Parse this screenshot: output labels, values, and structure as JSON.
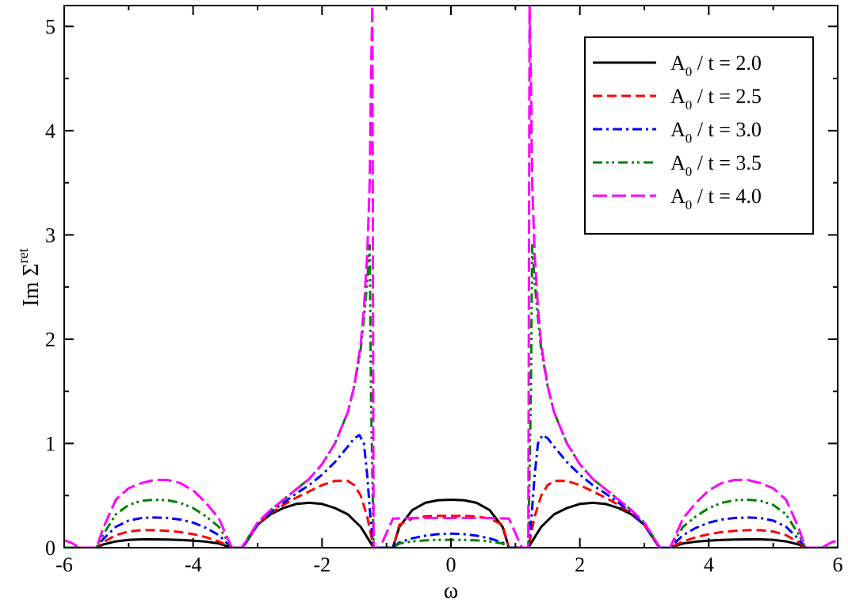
{
  "chart_data": {
    "type": "line",
    "xlabel": "ω",
    "ylabel_main": "Im Σ",
    "ylabel_sup": "ret",
    "xlim": [
      -6,
      6
    ],
    "ylim": [
      0,
      5.2
    ],
    "xticks": [
      -6,
      -4,
      -2,
      0,
      2,
      4,
      6
    ],
    "xtick_labels": [
      "-6",
      "-4",
      "-2",
      "0",
      "2",
      "4",
      "6"
    ],
    "yticks": [
      0,
      1,
      2,
      3,
      4,
      5
    ],
    "ytick_labels": [
      "0",
      "1",
      "2",
      "3",
      "4",
      "5"
    ],
    "legend_position": "top-right",
    "series": [
      {
        "label_base": "A",
        "label_sub": "0",
        "label_rest": " / t = 2.0",
        "color": "#000000",
        "dash": "solid",
        "x": [
          -6.0,
          -5.5,
          -5.4,
          -5.2,
          -5.0,
          -4.8,
          -4.6,
          -4.4,
          -4.2,
          -4.0,
          -3.8,
          -3.6,
          -3.5,
          -3.4,
          -3.25,
          -3.2,
          -3.0,
          -2.8,
          -2.6,
          -2.4,
          -2.2,
          -2.0,
          -1.8,
          -1.6,
          -1.4,
          -1.3,
          -1.2,
          -1.1,
          -0.9,
          -0.8,
          -0.6,
          -0.4,
          -0.2,
          0.0,
          0.2,
          0.4,
          0.6,
          0.8,
          0.9,
          1.1,
          1.2,
          1.3,
          1.4,
          1.6,
          1.8,
          2.0,
          2.2,
          2.4,
          2.6,
          2.8,
          3.0,
          3.2,
          3.25,
          3.4,
          3.5,
          3.6,
          3.8,
          4.0,
          4.2,
          4.4,
          4.6,
          4.8,
          5.0,
          5.2,
          5.4,
          5.5,
          6.0
        ],
        "y": [
          0.0,
          0.0,
          0.03,
          0.06,
          0.075,
          0.08,
          0.08,
          0.078,
          0.074,
          0.068,
          0.058,
          0.04,
          0.02,
          0.0,
          0.0,
          0.03,
          0.22,
          0.32,
          0.38,
          0.42,
          0.43,
          0.42,
          0.38,
          0.32,
          0.2,
          0.1,
          0.0,
          0.0,
          0.0,
          0.2,
          0.36,
          0.43,
          0.455,
          0.46,
          0.455,
          0.43,
          0.36,
          0.2,
          0.0,
          0.0,
          0.0,
          0.1,
          0.2,
          0.32,
          0.38,
          0.42,
          0.43,
          0.42,
          0.38,
          0.32,
          0.22,
          0.03,
          0.0,
          0.0,
          0.02,
          0.04,
          0.058,
          0.068,
          0.074,
          0.078,
          0.08,
          0.08,
          0.075,
          0.06,
          0.03,
          0.0,
          0.0
        ]
      },
      {
        "label_base": "A",
        "label_sub": "0",
        "label_rest": " / t = 2.5",
        "color": "#ff0000",
        "dash": "dash",
        "x": [
          -6.0,
          -5.5,
          -5.4,
          -5.2,
          -5.0,
          -4.8,
          -4.6,
          -4.4,
          -4.2,
          -4.0,
          -3.8,
          -3.6,
          -3.5,
          -3.4,
          -3.25,
          -3.2,
          -3.0,
          -2.8,
          -2.6,
          -2.4,
          -2.2,
          -2.0,
          -1.8,
          -1.6,
          -1.5,
          -1.4,
          -1.3,
          -1.2,
          -1.1,
          -0.9,
          -0.8,
          -0.6,
          -0.4,
          -0.2,
          0.0,
          0.2,
          0.4,
          0.6,
          0.8,
          0.9,
          1.1,
          1.2,
          1.3,
          1.4,
          1.5,
          1.6,
          1.8,
          2.0,
          2.2,
          2.4,
          2.6,
          2.8,
          3.0,
          3.2,
          3.25,
          3.4,
          3.5,
          3.6,
          3.8,
          4.0,
          4.2,
          4.4,
          4.6,
          4.8,
          5.0,
          5.2,
          5.4,
          5.5,
          6.0
        ],
        "y": [
          0.0,
          0.0,
          0.05,
          0.12,
          0.155,
          0.168,
          0.168,
          0.162,
          0.15,
          0.13,
          0.1,
          0.06,
          0.03,
          0.0,
          0.0,
          0.03,
          0.22,
          0.33,
          0.41,
          0.48,
          0.54,
          0.6,
          0.64,
          0.64,
          0.6,
          0.5,
          0.3,
          0.0,
          0.0,
          0.0,
          0.22,
          0.28,
          0.3,
          0.305,
          0.305,
          0.305,
          0.3,
          0.28,
          0.22,
          0.0,
          0.0,
          0.0,
          0.3,
          0.5,
          0.6,
          0.64,
          0.64,
          0.6,
          0.54,
          0.48,
          0.41,
          0.33,
          0.22,
          0.03,
          0.0,
          0.0,
          0.03,
          0.06,
          0.1,
          0.13,
          0.15,
          0.162,
          0.168,
          0.168,
          0.155,
          0.12,
          0.05,
          0.0,
          0.0
        ]
      },
      {
        "label_base": "A",
        "label_sub": "0",
        "label_rest": " / t = 3.0",
        "color": "#0000ff",
        "dash": "dashdot",
        "x": [
          -6.0,
          -5.5,
          -5.4,
          -5.2,
          -5.0,
          -4.8,
          -4.6,
          -4.4,
          -4.2,
          -4.0,
          -3.8,
          -3.6,
          -3.5,
          -3.4,
          -3.25,
          -3.2,
          -3.0,
          -2.8,
          -2.6,
          -2.4,
          -2.2,
          -2.0,
          -1.8,
          -1.6,
          -1.5,
          -1.42,
          -1.35,
          -1.3,
          -1.25,
          -1.2,
          -1.1,
          -0.9,
          -0.8,
          -0.6,
          -0.4,
          -0.2,
          0.0,
          0.2,
          0.4,
          0.6,
          0.8,
          0.9,
          1.1,
          1.2,
          1.25,
          1.3,
          1.35,
          1.42,
          1.5,
          1.6,
          1.8,
          2.0,
          2.2,
          2.4,
          2.6,
          2.8,
          3.0,
          3.2,
          3.25,
          3.4,
          3.5,
          3.6,
          3.8,
          4.0,
          4.2,
          4.4,
          4.6,
          4.8,
          5.0,
          5.2,
          5.4,
          5.5,
          6.0
        ],
        "y": [
          0.0,
          0.0,
          0.08,
          0.2,
          0.26,
          0.285,
          0.29,
          0.285,
          0.27,
          0.24,
          0.19,
          0.12,
          0.06,
          0.0,
          0.0,
          0.03,
          0.22,
          0.34,
          0.43,
          0.52,
          0.6,
          0.7,
          0.82,
          0.97,
          1.05,
          1.08,
          1.0,
          0.7,
          0.3,
          0.0,
          0.0,
          0.0,
          0.05,
          0.09,
          0.115,
          0.13,
          0.135,
          0.13,
          0.115,
          0.09,
          0.05,
          0.0,
          0.0,
          0.0,
          0.3,
          0.7,
          1.0,
          1.08,
          1.05,
          0.97,
          0.82,
          0.7,
          0.6,
          0.52,
          0.43,
          0.34,
          0.22,
          0.03,
          0.0,
          0.0,
          0.06,
          0.12,
          0.19,
          0.24,
          0.27,
          0.285,
          0.29,
          0.285,
          0.26,
          0.2,
          0.08,
          0.0,
          0.0
        ]
      },
      {
        "label_base": "A",
        "label_sub": "0",
        "label_rest": " / t = 3.5",
        "color": "#008000",
        "dash": "dashdotdot",
        "x": [
          -6.0,
          -5.5,
          -5.4,
          -5.2,
          -5.0,
          -4.8,
          -4.6,
          -4.4,
          -4.2,
          -4.0,
          -3.8,
          -3.6,
          -3.5,
          -3.4,
          -3.25,
          -3.2,
          -3.0,
          -2.8,
          -2.6,
          -2.4,
          -2.2,
          -2.0,
          -1.8,
          -1.6,
          -1.5,
          -1.4,
          -1.35,
          -1.3,
          -1.26,
          -1.24,
          -1.2,
          -1.1,
          -0.9,
          -0.8,
          -0.6,
          -0.4,
          -0.2,
          0.0,
          0.2,
          0.4,
          0.6,
          0.8,
          0.9,
          1.1,
          1.2,
          1.24,
          1.26,
          1.3,
          1.35,
          1.4,
          1.5,
          1.6,
          1.8,
          2.0,
          2.2,
          2.4,
          2.6,
          2.8,
          3.0,
          3.2,
          3.25,
          3.4,
          3.5,
          3.6,
          3.8,
          4.0,
          4.2,
          4.4,
          4.6,
          4.8,
          5.0,
          5.2,
          5.4,
          5.5,
          6.0
        ],
        "y": [
          0.0,
          0.0,
          0.12,
          0.32,
          0.41,
          0.45,
          0.46,
          0.455,
          0.43,
          0.38,
          0.3,
          0.2,
          0.1,
          0.0,
          0.0,
          0.04,
          0.24,
          0.36,
          0.46,
          0.56,
          0.66,
          0.8,
          1.0,
          1.3,
          1.55,
          1.9,
          2.2,
          2.55,
          2.9,
          1.5,
          0.0,
          0.0,
          0.0,
          0.04,
          0.06,
          0.07,
          0.075,
          0.075,
          0.075,
          0.07,
          0.06,
          0.04,
          0.0,
          0.0,
          0.0,
          1.5,
          2.9,
          2.55,
          2.2,
          1.9,
          1.55,
          1.3,
          1.0,
          0.8,
          0.66,
          0.56,
          0.46,
          0.36,
          0.24,
          0.04,
          0.0,
          0.0,
          0.1,
          0.2,
          0.3,
          0.38,
          0.43,
          0.455,
          0.46,
          0.45,
          0.41,
          0.32,
          0.12,
          0.0,
          0.0
        ]
      },
      {
        "label_base": "A",
        "label_sub": "0",
        "label_rest": " / t = 4.0",
        "color": "#ff00ff",
        "dash": "longdash",
        "x": [
          -6.0,
          -5.9,
          -5.75,
          -5.5,
          -5.4,
          -5.2,
          -5.0,
          -4.8,
          -4.6,
          -4.4,
          -4.2,
          -4.0,
          -3.8,
          -3.6,
          -3.5,
          -3.4,
          -3.25,
          -3.2,
          -3.0,
          -2.8,
          -2.6,
          -2.4,
          -2.2,
          -2.0,
          -1.8,
          -1.6,
          -1.5,
          -1.4,
          -1.35,
          -1.3,
          -1.26,
          -1.24,
          -1.22,
          -1.2,
          -1.1,
          -0.9,
          -0.6,
          -0.3,
          0.0,
          0.3,
          0.6,
          0.9,
          1.1,
          1.2,
          1.22,
          1.24,
          1.26,
          1.3,
          1.35,
          1.4,
          1.5,
          1.6,
          1.8,
          2.0,
          2.2,
          2.4,
          2.6,
          2.8,
          3.0,
          3.2,
          3.25,
          3.4,
          3.5,
          3.6,
          3.8,
          4.0,
          4.2,
          4.4,
          4.6,
          4.8,
          5.0,
          5.2,
          5.4,
          5.5,
          5.75,
          5.9,
          6.0
        ],
        "y": [
          0.07,
          0.05,
          0.0,
          0.0,
          0.18,
          0.46,
          0.57,
          0.62,
          0.65,
          0.65,
          0.62,
          0.55,
          0.43,
          0.28,
          0.14,
          0.0,
          0.0,
          0.04,
          0.24,
          0.36,
          0.46,
          0.56,
          0.66,
          0.8,
          1.0,
          1.3,
          1.55,
          1.95,
          2.3,
          2.8,
          3.5,
          4.5,
          5.2,
          0.0,
          0.0,
          0.28,
          0.285,
          0.285,
          0.285,
          0.285,
          0.285,
          0.28,
          0.0,
          0.0,
          5.2,
          4.5,
          3.5,
          2.8,
          2.3,
          1.95,
          1.55,
          1.3,
          1.0,
          0.8,
          0.66,
          0.56,
          0.46,
          0.36,
          0.24,
          0.04,
          0.0,
          0.0,
          0.14,
          0.28,
          0.43,
          0.55,
          0.62,
          0.65,
          0.65,
          0.62,
          0.57,
          0.46,
          0.18,
          0.0,
          0.0,
          0.05,
          0.07
        ]
      }
    ]
  }
}
